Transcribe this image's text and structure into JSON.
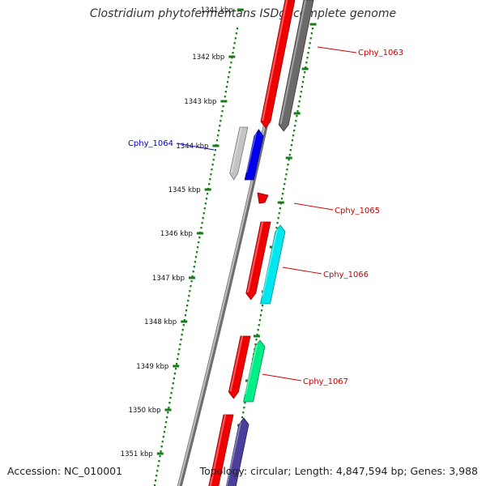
{
  "title": "Clostridium phytofermentans ISDg, complete genome",
  "accession": "Accession: NC_010001",
  "summary": "Topology: circular; Length: 4,847,594 bp; Genes: 3,988",
  "colors": {
    "backbone": "#8a8a8a",
    "tick_dots": "#1a7a1a",
    "label_red": "#cc0000",
    "label_blue": "#0000cc"
  },
  "ticks": [
    {
      "label": "1341 kbp"
    },
    {
      "label": "1342 kbp"
    },
    {
      "label": "1343 kbp"
    },
    {
      "label": "1344 kbp"
    },
    {
      "label": "1345 kbp"
    },
    {
      "label": "1346 kbp"
    },
    {
      "label": "1347 kbp"
    },
    {
      "label": "1348 kbp"
    },
    {
      "label": "1349 kbp"
    },
    {
      "label": "1350 kbp"
    },
    {
      "label": "1351 kbp"
    }
  ],
  "gene_labels": [
    {
      "id": "Cphy_1063",
      "side": "right",
      "color": "#cc0000"
    },
    {
      "id": "Cphy_1064",
      "side": "left",
      "color": "#0000cc"
    },
    {
      "id": "Cphy_1065",
      "side": "right",
      "color": "#cc0000"
    },
    {
      "id": "Cphy_1066",
      "side": "right",
      "color": "#cc0000"
    },
    {
      "id": "Cphy_1067",
      "side": "right",
      "color": "#cc0000"
    }
  ]
}
